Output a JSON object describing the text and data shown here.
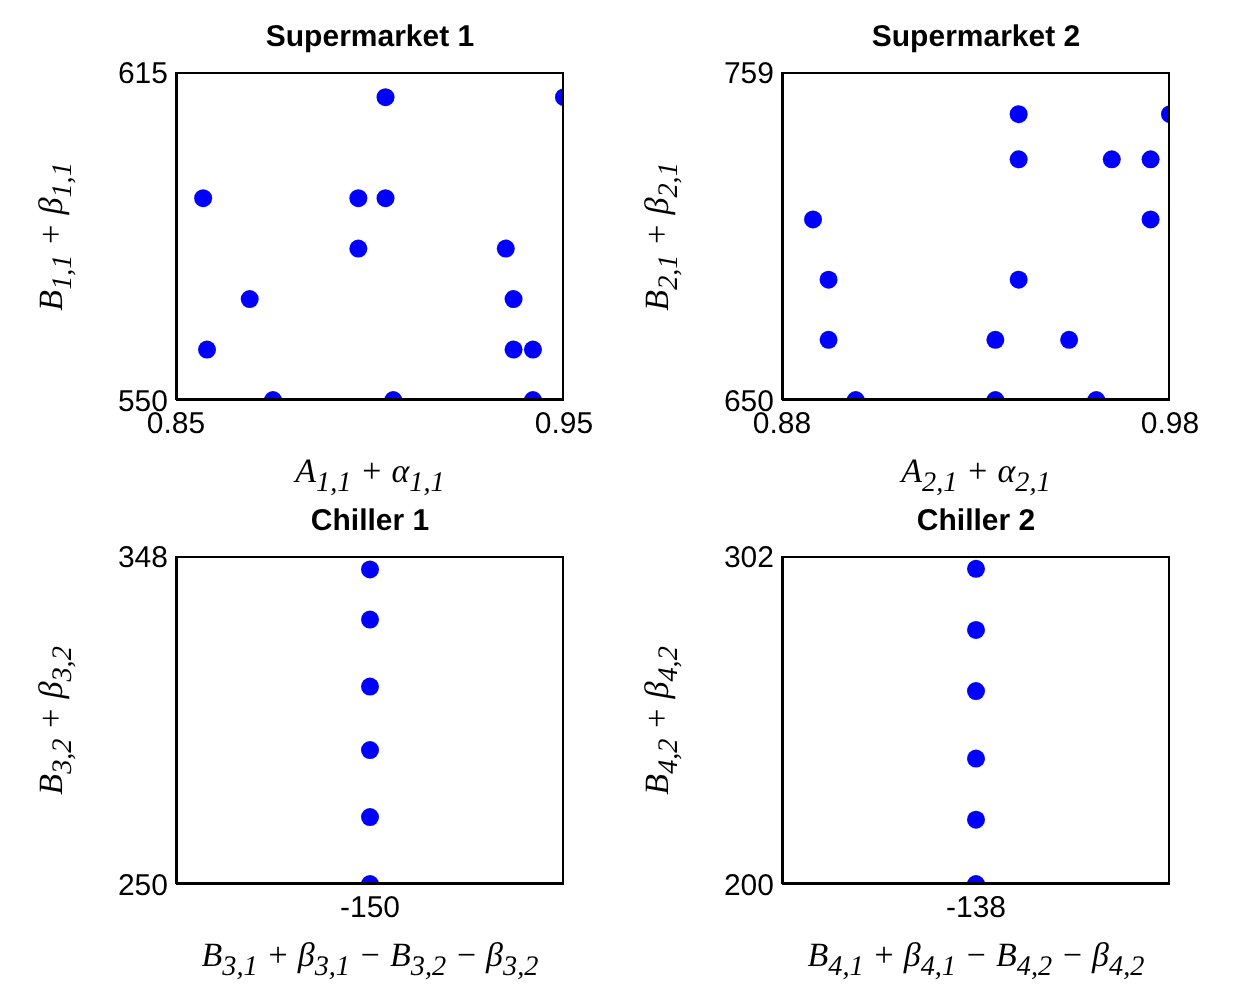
{
  "chart_data": [
    {
      "type": "scatter",
      "title": "Supermarket 1",
      "xlabel": "A$_{1,1}$ + α$_{1,1}$",
      "ylabel": "B$_{1,1}$ + β$_{1,1}$",
      "xlim": [
        0.85,
        0.95
      ],
      "xticks": [
        0.85,
        0.95
      ],
      "ylim": [
        550,
        615
      ],
      "yticks": [
        550,
        615
      ],
      "marker": "circle",
      "series": [
        {
          "color": "#0000ff",
          "x": [
            0.857,
            0.95,
            0.904,
            0.897,
            0.904,
            0.897,
            0.935,
            0.869,
            0.937,
            0.858,
            0.937,
            0.942,
            0.875,
            0.906,
            0.942
          ],
          "values": [
            590,
            610,
            610,
            590,
            590,
            580,
            580,
            570,
            570,
            560,
            560,
            560,
            550,
            550,
            550
          ]
        }
      ]
    },
    {
      "type": "scatter",
      "title": "Supermarket 2",
      "xlabel": "A$_{2,1}$ + α$_{2,1}$",
      "ylabel": "B$_{2,1}$ + β$_{2,1}$",
      "xlim": [
        0.88,
        0.98
      ],
      "xticks": [
        0.88,
        0.98
      ],
      "ylim": [
        650,
        759
      ],
      "yticks": [
        650,
        759
      ],
      "marker": "circle",
      "series": [
        {
          "color": "#0000ff",
          "x": [
            0.888,
            0.892,
            0.892,
            0.899,
            0.935,
            0.935,
            0.941,
            0.941,
            0.941,
            0.954,
            0.961,
            0.965,
            0.975,
            0.975,
            0.98
          ],
          "values": [
            710,
            690,
            670,
            650,
            670,
            650,
            745,
            730,
            690,
            670,
            650,
            730,
            730,
            710,
            745
          ]
        }
      ]
    },
    {
      "type": "scatter",
      "title": "Chiller 1",
      "xlabel": "B$_{3,1}$ + β$_{3,1}$ − B$_{3,2}$ − β$_{3,2}$",
      "ylabel": "B$_{3,2}$ + β$_{3,2}$",
      "categories": [
        "-150"
      ],
      "ylim": [
        250,
        348
      ],
      "yticks": [
        250,
        348
      ],
      "marker": "circle",
      "series": [
        {
          "color": "#0000ff",
          "x": [
            "-150",
            "-150",
            "-150",
            "-150",
            "-150",
            "-150"
          ],
          "values": [
            344,
            329,
            309,
            290,
            270,
            250
          ]
        }
      ]
    },
    {
      "type": "scatter",
      "title": "Chiller 2",
      "xlabel": "B$_{4,1}$ + β$_{4,1}$ − B$_{4,2}$ − β$_{4,2}$",
      "ylabel": "B$_{4,2}$ + β$_{4,2}$",
      "categories": [
        "-138"
      ],
      "ylim": [
        200,
        302
      ],
      "yticks": [
        200,
        302
      ],
      "marker": "circle",
      "series": [
        {
          "color": "#0000ff",
          "x": [
            "-138",
            "-138",
            "-138",
            "-138",
            "-138",
            "-138"
          ],
          "values": [
            298,
            279,
            260,
            239,
            220,
            200
          ]
        }
      ]
    }
  ]
}
